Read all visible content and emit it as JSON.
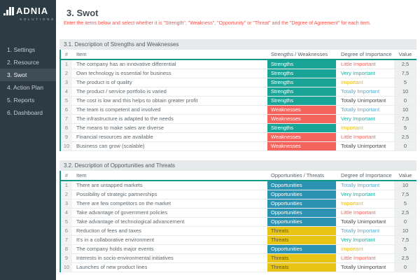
{
  "app": {
    "logo_text": "ADNIA",
    "logo_subtext": "SOLUTIONS"
  },
  "sidebar": {
    "active_index": 2,
    "items": [
      {
        "label": "1. Settings"
      },
      {
        "label": "2. Resource"
      },
      {
        "label": "3. Swot"
      },
      {
        "label": "4. Action Plan"
      },
      {
        "label": "5. Reports"
      },
      {
        "label": "6. Dashboard"
      }
    ]
  },
  "header": {
    "title": "3. Swot",
    "instruction": "Enter the items below and select whether it is \"Strength\", \"Weakness\", \"Opportunity\" or \"Threat\" and the \"Degree of Agreement\" for each item."
  },
  "colors": {
    "sidebar_bg": "#2d3b44",
    "sidebar_active_bg": "#3e4d56",
    "accent_teal": "#13988a",
    "instruction_red": "#ff4f45",
    "category": {
      "Strengths": "#18a597",
      "Weaknesses": "#f4635c",
      "Opportunities": "#2b93b1",
      "Threats": "#e8c414"
    },
    "category_text": {
      "Strengths": "#ffffff",
      "Weaknesses": "#ffffff",
      "Opportunities": "#ffffff",
      "Threats": "#5d5948"
    },
    "importance": {
      "Totally Important": "#55abd6",
      "Very Important": "#1eb2a3",
      "Important": "#e8ba10",
      "Little Important": "#f4635c",
      "Totally Unimportant": "#4c4c4c"
    }
  },
  "tables": [
    {
      "section_title": "3.1. Description of Strengths and Weaknesses",
      "columns": [
        "#",
        "Item",
        "Strengths / Weaknesses",
        "Degree of Importance",
        "Value"
      ],
      "rows": [
        {
          "num": "1",
          "item": "The company has an innovative differential",
          "category": "Strengths",
          "importance": "Little Important",
          "value": "2,5"
        },
        {
          "num": "2",
          "item": "Own technology is essential for business",
          "category": "Strengths",
          "importance": "Very Important",
          "value": "7,5"
        },
        {
          "num": "3",
          "item": "The product is of quality",
          "category": "Strengths",
          "importance": "Important",
          "value": "5"
        },
        {
          "num": "4",
          "item": "The product / service portfolio is varied",
          "category": "Strengths",
          "importance": "Totally Important",
          "value": "10"
        },
        {
          "num": "5",
          "item": "The cost is low and this helps to obtain greater profit",
          "category": "Strengths",
          "importance": "Totally Unimportant",
          "value": "0"
        },
        {
          "num": "6",
          "item": "The team is competent and involved",
          "category": "Weaknesses",
          "importance": "Totally Important",
          "value": "10"
        },
        {
          "num": "7",
          "item": "The infrastructure is adapted to the needs",
          "category": "Weaknesses",
          "importance": "Very Important",
          "value": "7,5"
        },
        {
          "num": "8",
          "item": "The means to make sales are diverse",
          "category": "Strengths",
          "importance": "Important",
          "value": "5"
        },
        {
          "num": "9",
          "item": "Financial resources are available",
          "category": "Weaknesses",
          "importance": "Little Important",
          "value": "2,5"
        },
        {
          "num": "10",
          "item": "Business can grow (scalable)",
          "category": "Weaknesses",
          "importance": "Totally Unimportant",
          "value": "0"
        }
      ]
    },
    {
      "section_title": "3.2. Description of Opportunities and Threats",
      "columns": [
        "#",
        "Item",
        "Opportunities / Threats",
        "Degree of Importance",
        "Value"
      ],
      "rows": [
        {
          "num": "1",
          "item": "There are untapped markets",
          "category": "Opportunities",
          "importance": "Totally Important",
          "value": "10"
        },
        {
          "num": "2",
          "item": "Possibility of strategic partnerships",
          "category": "Opportunities",
          "importance": "Very Important",
          "value": "7,5"
        },
        {
          "num": "3",
          "item": "There are few competitors on the market",
          "category": "Opportunities",
          "importance": "Important",
          "value": "5"
        },
        {
          "num": "4",
          "item": "Take advantage of government policies",
          "category": "Opportunities",
          "importance": "Little Important",
          "value": "2,5"
        },
        {
          "num": "5",
          "item": "Take advantage of technological advancement",
          "category": "Opportunities",
          "importance": "Totally Unimportant",
          "value": "0"
        },
        {
          "num": "6",
          "item": "Reduction of fees and taxes",
          "category": "Threats",
          "importance": "Totally Important",
          "value": "10"
        },
        {
          "num": "7",
          "item": "It's in a collaborative environment",
          "category": "Threats",
          "importance": "Very Important",
          "value": "7,5"
        },
        {
          "num": "8",
          "item": "The company holds major events",
          "category": "Opportunities",
          "importance": "Important",
          "value": "5"
        },
        {
          "num": "9",
          "item": "Interests in socio-environmental initiatives",
          "category": "Threats",
          "importance": "Little Important",
          "value": "2,5"
        },
        {
          "num": "10",
          "item": "Launches of new product lines",
          "category": "Threats",
          "importance": "Totally Unimportant",
          "value": "0"
        }
      ]
    }
  ]
}
